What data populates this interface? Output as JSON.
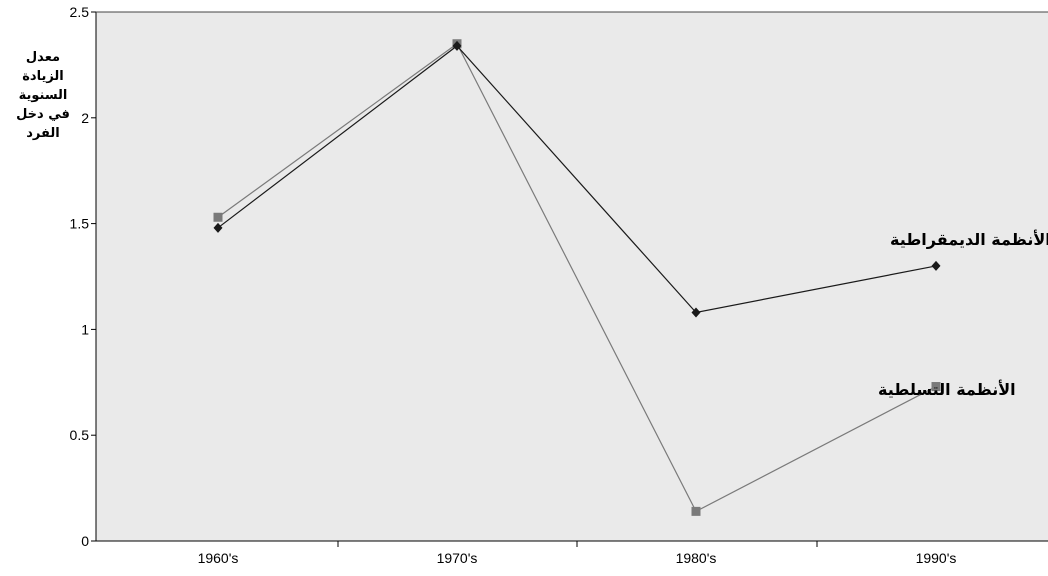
{
  "chart_data": {
    "type": "line",
    "title": "",
    "ylabel": [
      "معدل",
      "الزيادة",
      "السنوية",
      "في دخل",
      "الفرد"
    ],
    "xlabel": "",
    "categories": [
      "1960's",
      "1970's",
      "1980's",
      "1990's"
    ],
    "yticks": [
      "0",
      "0.5",
      "1",
      "1.5",
      "2",
      "2.5"
    ],
    "ylim": [
      0,
      2.5
    ],
    "grid": false,
    "series": [
      {
        "name": "الأنظمة الديمقراطية",
        "values": [
          1.48,
          2.34,
          1.08,
          1.3
        ],
        "marker": "diamond",
        "color": "#1a1a1a"
      },
      {
        "name": "الأنظمة التسلطية",
        "values": [
          1.53,
          2.35,
          0.14,
          0.73
        ],
        "marker": "square",
        "color": "#7a7a7a"
      }
    ],
    "plot_background": "#eaeaea"
  }
}
